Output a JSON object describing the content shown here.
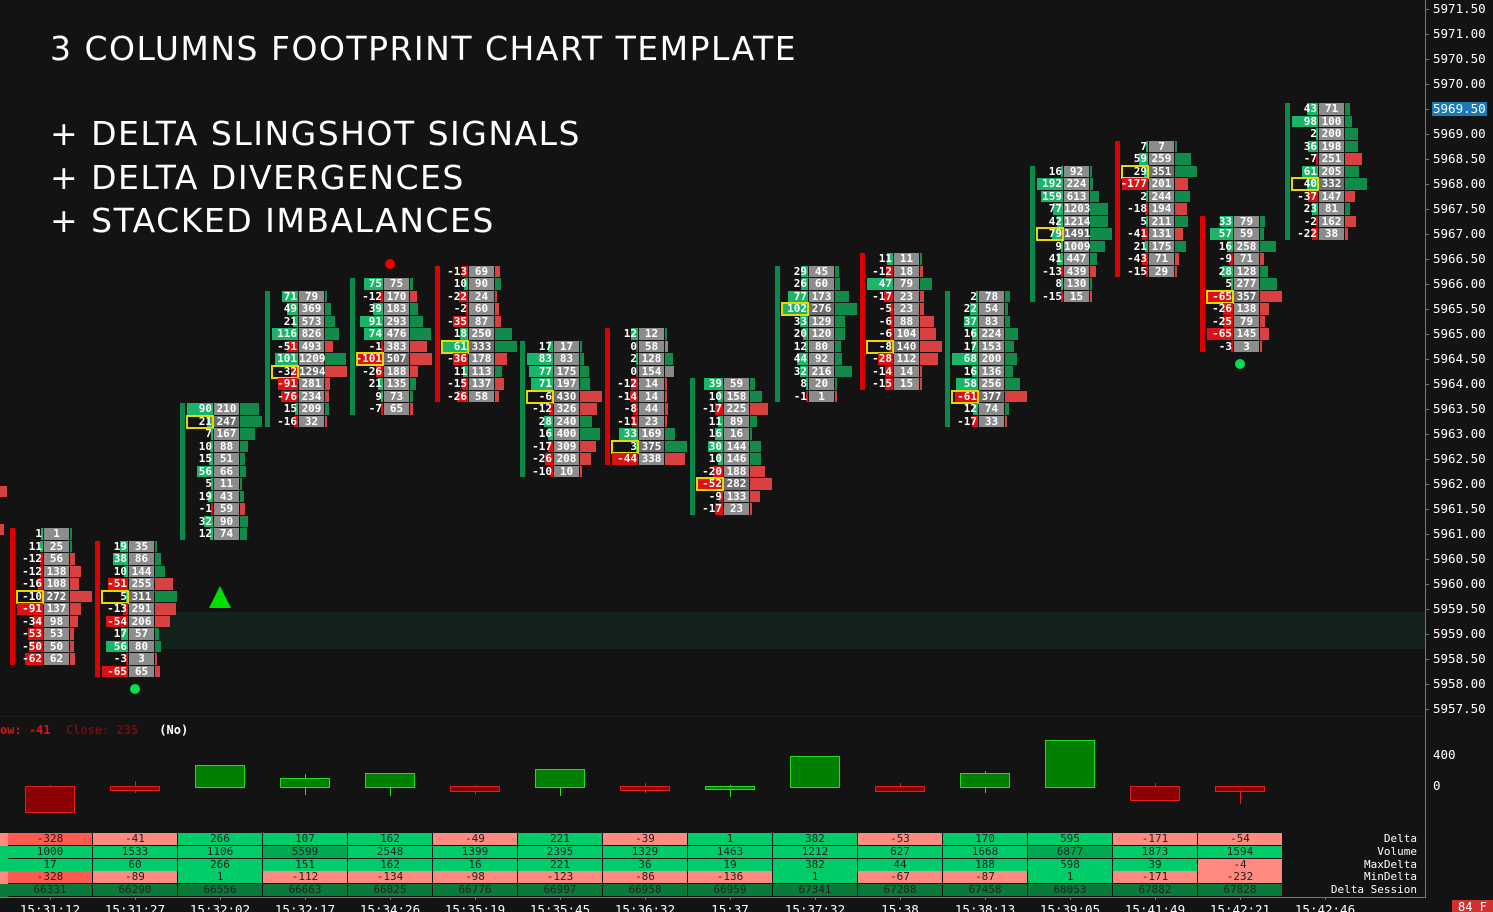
{
  "title_lines": [
    "3 COLUMNS FOOTPRINT CHART TEMPLATE",
    "+ DELTA SLINGSHOT SIGNALS",
    "+ DELTA DIVERGENCES",
    "+ STACKED IMBALANCES"
  ],
  "indicator_text": {
    "low": "ow: -41",
    "close": "Close: 235",
    "flag": "(No)"
  },
  "badge": "84 F",
  "colors": {
    "background": "#131313",
    "pos_delta": "#1bb56a",
    "neg_delta": "#dd1111",
    "volume_cell": "#8c8c8c",
    "poc_box": "#e8d800",
    "price_highlight": "#1a7ab8",
    "zone": "#12221a"
  },
  "chart_data": [
    {
      "type": "footprint",
      "tick_size": 0.25,
      "price_axis": {
        "ticks": [
          "5971.50",
          "5971.00",
          "5970.50",
          "5970.00",
          "5969.50",
          "5969.00",
          "5968.50",
          "5968.00",
          "5967.50",
          "5967.00",
          "5966.50",
          "5966.00",
          "5965.50",
          "5965.00",
          "5964.50",
          "5964.00",
          "5963.50",
          "5963.00",
          "5962.50",
          "5962.00",
          "5961.50",
          "5961.00",
          "5960.50",
          "5960.00",
          "5959.50",
          "5959.00",
          "5958.50",
          "5958.00",
          "5957.50"
        ],
        "highlighted": "5969.50",
        "range": [
          5957.5,
          5971.5
        ]
      },
      "zone": {
        "from": 5958.7,
        "to": 5959.45
      },
      "signals": [
        {
          "type": "triangle-up",
          "color": "#00e000",
          "column": 2,
          "price": 5959.75
        },
        {
          "type": "dot",
          "color": "#00e050",
          "column": 1,
          "price": 5957.9
        },
        {
          "type": "dot",
          "color": "#ee0000",
          "column": 4,
          "price": 5966.4
        },
        {
          "type": "dot",
          "color": "#00e050",
          "column": 14,
          "price": 5964.4
        }
      ],
      "columns": [
        {
          "time": "15:31:12",
          "top": 5961.0,
          "rows": [
            [
              1,
              1
            ],
            [
              11,
              25
            ],
            [
              -12,
              56
            ],
            [
              -12,
              138
            ],
            [
              -16,
              108
            ],
            [
              -10,
              272
            ],
            [
              -91,
              137
            ],
            [
              -34,
              98
            ],
            [
              -53,
              53
            ],
            [
              -50,
              50
            ],
            [
              -62,
              62
            ]
          ]
        },
        {
          "time": "15:31:27",
          "top": 5960.75,
          "rows": [
            [
              19,
              35
            ],
            [
              38,
              86
            ],
            [
              10,
              144
            ],
            [
              -51,
              255
            ],
            [
              5,
              311
            ],
            [
              -13,
              291
            ],
            [
              -54,
              206
            ],
            [
              17,
              57
            ],
            [
              56,
              80
            ],
            [
              -3,
              3
            ],
            [
              -65,
              65
            ]
          ]
        },
        {
          "time": "15:32:02",
          "top": 5963.5,
          "rows": [
            [
              90,
              210
            ],
            [
              21,
              247
            ],
            [
              7,
              167
            ],
            [
              10,
              88
            ],
            [
              15,
              51
            ],
            [
              56,
              66
            ],
            [
              5,
              11
            ],
            [
              19,
              43
            ],
            [
              -1,
              59
            ],
            [
              32,
              90
            ],
            [
              12,
              74
            ]
          ]
        },
        {
          "time": "15:32:17",
          "top": 5965.75,
          "rows": [
            [
              71,
              79
            ],
            [
              49,
              369
            ],
            [
              21,
              573
            ],
            [
              116,
              826
            ],
            [
              -51,
              493
            ],
            [
              101,
              1209
            ],
            [
              -32,
              1294
            ],
            [
              -91,
              281
            ],
            [
              -76,
              234
            ],
            [
              15,
              209
            ],
            [
              -16,
              32
            ]
          ]
        },
        {
          "time": "15:34:26",
          "top": 5966.0,
          "rows": [
            [
              75,
              75
            ],
            [
              -12,
              170
            ],
            [
              39,
              183
            ],
            [
              91,
              293
            ],
            [
              74,
              476
            ],
            [
              -1,
              383
            ],
            [
              -101,
              507
            ],
            [
              -26,
              188
            ],
            [
              21,
              135
            ],
            [
              9,
              73
            ],
            [
              -7,
              65
            ]
          ]
        },
        {
          "time": "15:35:19",
          "top": 5966.25,
          "rows": [
            [
              -13,
              69
            ],
            [
              10,
              90
            ],
            [
              -22,
              24
            ],
            [
              -2,
              60
            ],
            [
              -35,
              87
            ],
            [
              18,
              250
            ],
            [
              61,
              333
            ],
            [
              -36,
              178
            ],
            [
              11,
              113
            ],
            [
              -15,
              137
            ],
            [
              -26,
              58
            ]
          ]
        },
        {
          "time": "15:35:45",
          "top": 5964.75,
          "rows": [
            [
              17,
              17
            ],
            [
              83,
              83
            ],
            [
              77,
              175
            ],
            [
              71,
              197
            ],
            [
              -6,
              430
            ],
            [
              -12,
              326
            ],
            [
              28,
              240
            ],
            [
              16,
              400
            ],
            [
              -17,
              309
            ],
            [
              -26,
              208
            ],
            [
              -10,
              10
            ]
          ]
        },
        {
          "time": "15:36:32",
          "top": 5965.0,
          "rows": [
            [
              12,
              12
            ],
            [
              0,
              58
            ],
            [
              2,
              128
            ],
            [
              0,
              154
            ],
            [
              -12,
              14
            ],
            [
              -14,
              14
            ],
            [
              -8,
              44
            ],
            [
              -11,
              23
            ],
            [
              33,
              169
            ],
            [
              3,
              375
            ],
            [
              -44,
              338
            ]
          ]
        },
        {
          "time": "15:37",
          "top": 5964.0,
          "rows": [
            [
              39,
              59
            ],
            [
              10,
              158
            ],
            [
              -17,
              225
            ],
            [
              11,
              89
            ],
            [
              16,
              16
            ],
            [
              30,
              144
            ],
            [
              10,
              146
            ],
            [
              -20,
              188
            ],
            [
              -52,
              282
            ],
            [
              -9,
              133
            ],
            [
              -17,
              23
            ]
          ]
        },
        {
          "time": "15:37:32",
          "top": 5966.25,
          "rows": [
            [
              29,
              45
            ],
            [
              26,
              60
            ],
            [
              77,
              173
            ],
            [
              102,
              276
            ],
            [
              33,
              129
            ],
            [
              20,
              120
            ],
            [
              12,
              80
            ],
            [
              44,
              92
            ],
            [
              32,
              216
            ],
            [
              8,
              20
            ],
            [
              -1,
              1
            ]
          ]
        },
        {
          "time": "15:38",
          "top": 5966.5,
          "rows": [
            [
              11,
              11
            ],
            [
              -12,
              18
            ],
            [
              47,
              79
            ],
            [
              -17,
              23
            ],
            [
              -5,
              23
            ],
            [
              -6,
              88
            ],
            [
              -6,
              104
            ],
            [
              -8,
              140
            ],
            [
              -28,
              112
            ],
            [
              -14,
              14
            ],
            [
              -15,
              15
            ]
          ]
        },
        {
          "time": "15:38:13",
          "top": 5965.75,
          "rows": [
            [
              2,
              78
            ],
            [
              22,
              54
            ],
            [
              37,
              83
            ],
            [
              16,
              224
            ],
            [
              17,
              153
            ],
            [
              68,
              200
            ],
            [
              16,
              136
            ],
            [
              58,
              256
            ],
            [
              -61,
              377
            ],
            [
              12,
              74
            ],
            [
              -17,
              33
            ]
          ]
        },
        {
          "time": "15:39:05",
          "top": 5968.25,
          "rows": [
            [
              16,
              92
            ],
            [
              192,
              224
            ],
            [
              159,
              613
            ],
            [
              77,
              1203
            ],
            [
              42,
              1214
            ],
            [
              79,
              1491
            ],
            [
              9,
              1009
            ],
            [
              41,
              447
            ],
            [
              -13,
              439
            ],
            [
              8,
              130
            ],
            [
              -15,
              15
            ]
          ]
        },
        {
          "time": "15:41:49",
          "top": 5968.75,
          "rows": [
            [
              7,
              7
            ],
            [
              59,
              259
            ],
            [
              29,
              351
            ],
            [
              -177,
              201
            ],
            [
              2,
              244
            ],
            [
              -18,
              194
            ],
            [
              5,
              211
            ],
            [
              -41,
              131
            ],
            [
              21,
              175
            ],
            [
              -43,
              71
            ],
            [
              -15,
              29
            ]
          ]
        },
        {
          "time": "15:42:21",
          "top": 5967.25,
          "rows": [
            [
              33,
              79
            ],
            [
              57,
              59
            ],
            [
              16,
              258
            ],
            [
              -9,
              71
            ],
            [
              28,
              128
            ],
            [
              5,
              277
            ],
            [
              -65,
              357
            ],
            [
              -26,
              138
            ],
            [
              -25,
              79
            ],
            [
              -65,
              145
            ],
            [
              -3,
              3
            ]
          ]
        },
        {
          "time": "15:42:46",
          "top": 5969.5,
          "rows": [
            [
              43,
              71
            ],
            [
              98,
              100
            ],
            [
              2,
              200
            ],
            [
              36,
              198
            ],
            [
              -7,
              251
            ],
            [
              61,
              205
            ],
            [
              40,
              332
            ],
            [
              -37,
              147
            ],
            [
              23,
              81
            ],
            [
              -2,
              162
            ],
            [
              -22,
              38
            ]
          ]
        }
      ]
    },
    {
      "type": "candlestick",
      "ylabel_ticks": [
        "400",
        "0"
      ],
      "note": "delta bars: open 0, close Delta, high MaxDelta, low MinDelta"
    },
    {
      "type": "table",
      "row_labels": [
        "Delta",
        "Volume",
        "MaxDelta",
        "MinDelta",
        "Delta Session"
      ],
      "columns": [
        {
          "time": "15:31:12",
          "Delta": -328,
          "Volume": 1000,
          "MaxDelta": 17,
          "MinDelta": -328,
          "DeltaSession": 66331
        },
        {
          "time": "15:31:27",
          "Delta": -41,
          "Volume": 1533,
          "MaxDelta": 60,
          "MinDelta": -89,
          "DeltaSession": 66290
        },
        {
          "time": "15:32:02",
          "Delta": 266,
          "Volume": 1106,
          "MaxDelta": 266,
          "MinDelta": 1,
          "DeltaSession": 66556
        },
        {
          "time": "15:32:17",
          "Delta": 107,
          "Volume": 5599,
          "MaxDelta": 151,
          "MinDelta": -112,
          "DeltaSession": 66663
        },
        {
          "time": "15:34:26",
          "Delta": 162,
          "Volume": 2548,
          "MaxDelta": 162,
          "MinDelta": -134,
          "DeltaSession": 66825
        },
        {
          "time": "15:35:19",
          "Delta": -49,
          "Volume": 1399,
          "MaxDelta": 16,
          "MinDelta": -98,
          "DeltaSession": 66776
        },
        {
          "time": "15:35:45",
          "Delta": 221,
          "Volume": 2395,
          "MaxDelta": 221,
          "MinDelta": -123,
          "DeltaSession": 66997
        },
        {
          "time": "15:36:32",
          "Delta": -39,
          "Volume": 1329,
          "MaxDelta": 36,
          "MinDelta": -86,
          "DeltaSession": 66958
        },
        {
          "time": "15:37",
          "Delta": 1,
          "Volume": 1463,
          "MaxDelta": 19,
          "MinDelta": -136,
          "DeltaSession": 66959
        },
        {
          "time": "15:37:32",
          "Delta": 382,
          "Volume": 1212,
          "MaxDelta": 382,
          "MinDelta": 1,
          "DeltaSession": 67341
        },
        {
          "time": "15:38",
          "Delta": -53,
          "Volume": 627,
          "MaxDelta": 44,
          "MinDelta": -67,
          "DeltaSession": 67288
        },
        {
          "time": "15:38:13",
          "Delta": 170,
          "Volume": 1668,
          "MaxDelta": 188,
          "MinDelta": -87,
          "DeltaSession": 67458
        },
        {
          "time": "15:39:05",
          "Delta": 595,
          "Volume": 6877,
          "MaxDelta": 598,
          "MinDelta": 1,
          "DeltaSession": 68053
        },
        {
          "time": "15:41:49",
          "Delta": -171,
          "Volume": 1873,
          "MaxDelta": 39,
          "MinDelta": -171,
          "DeltaSession": 67882
        },
        {
          "time": "15:42:21",
          "Delta": -54,
          "Volume": 1594,
          "MaxDelta": -4,
          "MinDelta": -232,
          "DeltaSession": 67828
        }
      ]
    }
  ],
  "time_axis": [
    "15:31:12",
    "15:31:27",
    "15:32:02",
    "15:32:17",
    "15:34:26",
    "15:35:19",
    "15:35:45",
    "15:36:32",
    "15:37",
    "15:37:32",
    "15:38",
    "15:38:13",
    "15:39:05",
    "15:41:49",
    "15:42:21",
    "15:42:46"
  ]
}
